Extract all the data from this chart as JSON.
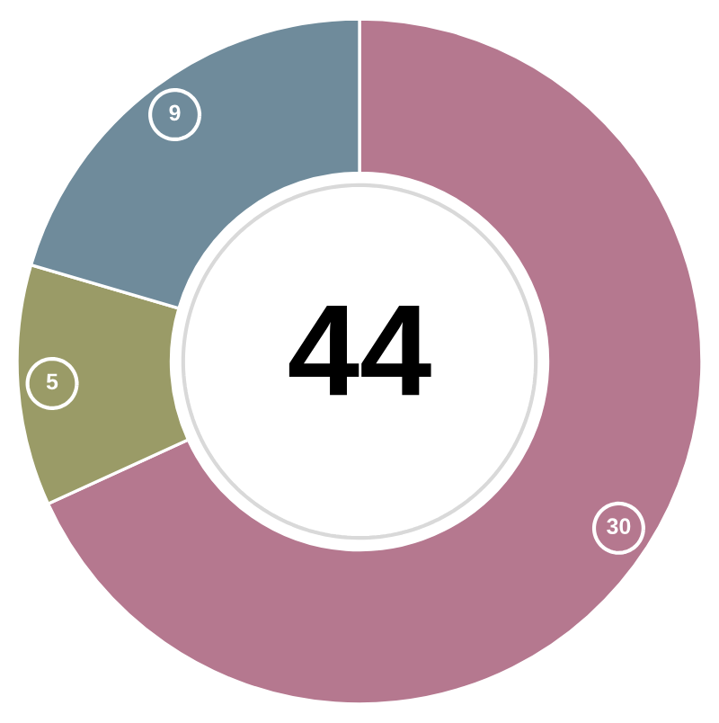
{
  "chart_data": {
    "type": "donut",
    "categories": [
      null,
      null,
      null
    ],
    "values": [
      30,
      5,
      9
    ],
    "colors": [
      "#b5788f",
      "#9a9b67",
      "#6f8b9b"
    ],
    "data_labels": true,
    "annotations": [
      "44"
    ]
  }
}
